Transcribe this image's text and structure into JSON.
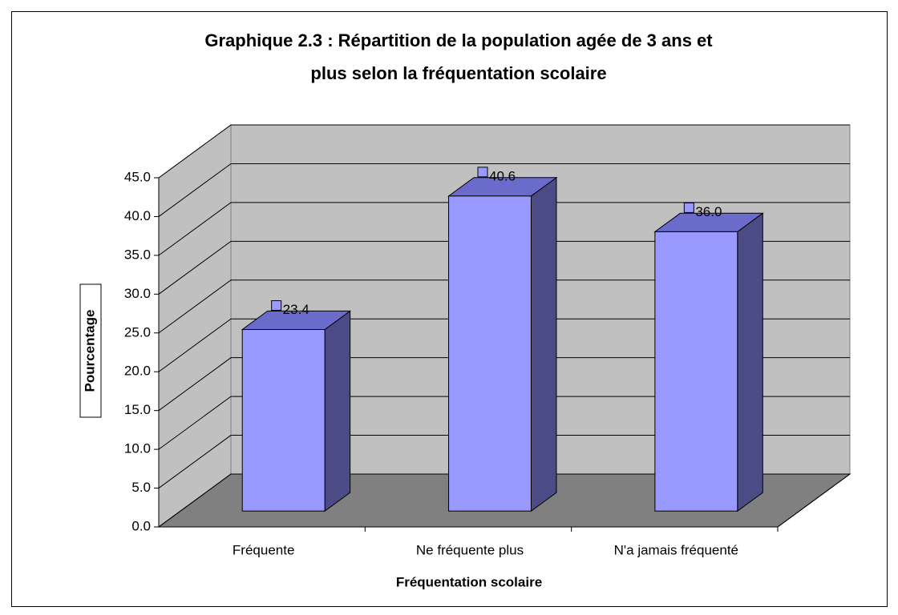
{
  "chart_data": {
    "type": "bar",
    "title": [
      "Graphique 2.3 : Répartition de la population agée de 3 ans et",
      "plus selon la fréquentation scolaire"
    ],
    "x_label": "Fréquentation scolaire",
    "y_label": "Pourcentage",
    "categories": [
      "Fréquente",
      "Ne fréquente plus",
      "N'a jamais fréquenté"
    ],
    "values": [
      23.4,
      40.6,
      36.0
    ],
    "value_labels": [
      "23.4",
      "40.6",
      "36.0"
    ],
    "color": "#9999ff",
    "ylim": [
      0,
      45
    ],
    "yticks": [
      {
        "value": 0,
        "label": "0.0"
      },
      {
        "value": 5,
        "label": "5.0"
      },
      {
        "value": 10,
        "label": "10.0"
      },
      {
        "value": 15,
        "label": "15.0"
      },
      {
        "value": 20,
        "label": "20.0"
      },
      {
        "value": 25,
        "label": "25.0"
      },
      {
        "value": 30,
        "label": "30.0"
      },
      {
        "value": 35,
        "label": "35.0"
      },
      {
        "value": 40,
        "label": "40.0"
      },
      {
        "value": 45,
        "label": "45.0"
      }
    ],
    "grid": true
  }
}
